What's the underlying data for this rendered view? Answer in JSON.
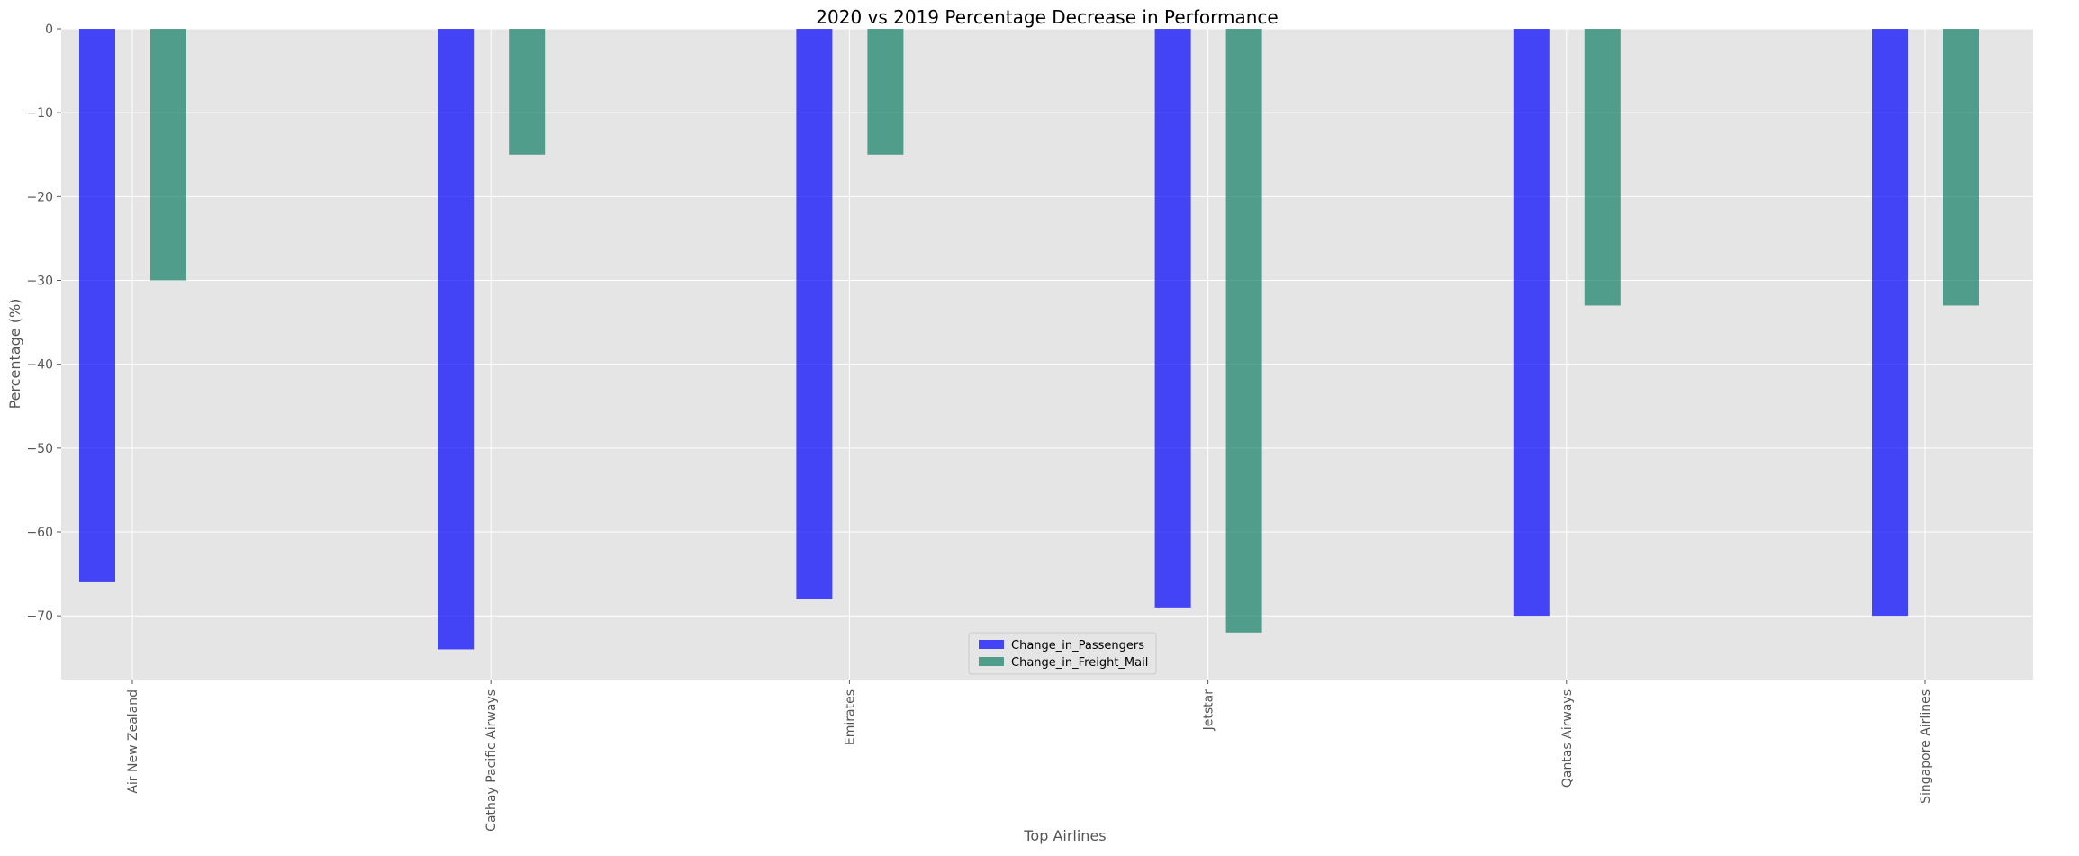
{
  "chart_data": {
    "type": "bar",
    "title": "2020 vs 2019 Percentage Decrease in Performance",
    "xlabel": "Top Airlines",
    "ylabel": "Percentage (%)",
    "categories": [
      "Air New Zealand",
      "Cathay Pacific Airways",
      "Emirates",
      "Jetstar",
      "Qantas Airways",
      "Singapore Airlines"
    ],
    "series": [
      {
        "name": "Change_in_Passengers",
        "color": "#0000ff",
        "values": [
          -66,
          -74,
          -68,
          -69,
          -70,
          -70
        ]
      },
      {
        "name": "Change_in_Freight_Mail",
        "color": "#127f67",
        "values": [
          -30,
          -15,
          -15,
          -72,
          -33,
          -33
        ]
      }
    ],
    "ylim": [
      -77.6,
      0
    ],
    "yticks": [
      0,
      -10,
      -20,
      -30,
      -40,
      -50,
      -60,
      -70
    ],
    "ytick_labels": [
      "0",
      "−10",
      "−20",
      "−30",
      "−40",
      "−50",
      "−60",
      "−70"
    ],
    "grid": true,
    "legend_position": "lower center",
    "style": "ggplot",
    "bar_opacity": 0.7
  }
}
